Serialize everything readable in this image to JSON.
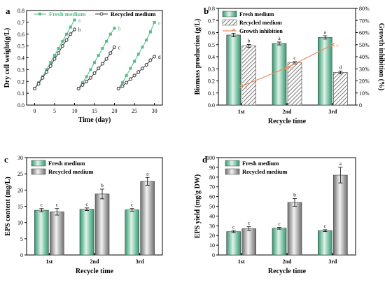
{
  "colors": {
    "fresh": "#4cbf85",
    "recycled": "#333333",
    "inhibition": "#f08a5d",
    "bar_fresh_dark": "#2e9a6e",
    "bar_fresh_light": "#dff3ea",
    "bar_recycled_dark": "#6e6e6e",
    "bar_recycled_light": "#f2f2f2"
  },
  "chart_data": [
    {
      "panel": "a",
      "type": "line",
      "xlabel": "Time (day)",
      "ylabel": "Dry cell weight(g/L)",
      "xlim": [
        -2,
        32
      ],
      "ylim": [
        0.0,
        0.8
      ],
      "xticks": [
        0,
        5,
        10,
        15,
        20,
        25,
        30
      ],
      "yticks": [
        0.0,
        0.1,
        0.2,
        0.3,
        0.4,
        0.5,
        0.6,
        0.7,
        0.8
      ],
      "legend": [
        "Fresh medium",
        "Recycled medium"
      ],
      "series": [
        {
          "name": "Fresh medium",
          "segment": 1,
          "x": [
            0,
            1,
            2,
            3,
            4,
            5,
            6,
            7,
            8,
            9,
            10
          ],
          "y": [
            0.14,
            0.19,
            0.24,
            0.3,
            0.36,
            0.42,
            0.48,
            0.54,
            0.6,
            0.66,
            0.72
          ],
          "end_label": "a"
        },
        {
          "name": "Recycled medium",
          "segment": 1,
          "x": [
            0,
            1,
            2,
            3,
            4,
            5,
            6,
            7,
            8,
            9,
            10
          ],
          "y": [
            0.14,
            0.18,
            0.23,
            0.28,
            0.33,
            0.39,
            0.44,
            0.5,
            0.55,
            0.6,
            0.64
          ],
          "end_label": "b"
        },
        {
          "name": "Fresh medium",
          "segment": 2,
          "x": [
            11,
            12,
            13,
            14,
            15,
            16,
            17,
            18,
            19,
            20
          ],
          "y": [
            0.14,
            0.19,
            0.24,
            0.3,
            0.36,
            0.42,
            0.48,
            0.54,
            0.6,
            0.65
          ],
          "end_label": "b"
        },
        {
          "name": "Recycled medium",
          "segment": 2,
          "x": [
            11,
            12,
            13,
            14,
            15,
            16,
            17,
            18,
            19,
            20
          ],
          "y": [
            0.14,
            0.17,
            0.2,
            0.23,
            0.27,
            0.31,
            0.35,
            0.39,
            0.44,
            0.49
          ],
          "end_label": "c"
        },
        {
          "name": "Fresh medium",
          "segment": 3,
          "x": [
            21,
            22,
            23,
            24,
            25,
            26,
            27,
            28,
            29,
            30
          ],
          "y": [
            0.14,
            0.19,
            0.25,
            0.31,
            0.37,
            0.43,
            0.49,
            0.55,
            0.62,
            0.7
          ],
          "end_label": "a"
        },
        {
          "name": "Recycled medium",
          "segment": 3,
          "x": [
            21,
            22,
            23,
            24,
            25,
            26,
            27,
            28,
            29,
            30
          ],
          "y": [
            0.14,
            0.16,
            0.19,
            0.22,
            0.25,
            0.28,
            0.31,
            0.34,
            0.38,
            0.41
          ],
          "end_label": "d"
        }
      ]
    },
    {
      "panel": "b",
      "type": "bar",
      "xlabel": "Recycle time",
      "ylabel": "Biomass production (g/L)",
      "ylabel_right": "Growth inhibition (%)",
      "categories": [
        "1st",
        "2nd",
        "3rd"
      ],
      "ylim": [
        0.0,
        0.8
      ],
      "yticks": [
        0.0,
        0.1,
        0.2,
        0.3,
        0.4,
        0.5,
        0.6,
        0.7,
        0.8
      ],
      "ylim_right": [
        0,
        80
      ],
      "yticks_right": [
        0,
        10,
        20,
        30,
        40,
        50,
        60,
        70,
        80
      ],
      "yticks_right_labels": [
        "0",
        "10%",
        "20%",
        "30%",
        "40%",
        "50%",
        "60%",
        "70%",
        "80%"
      ],
      "legend": [
        "Fresh medium",
        "Recycled medium",
        "Growth inhibition"
      ],
      "series": [
        {
          "name": "Fresh medium",
          "values": [
            0.58,
            0.51,
            0.56
          ],
          "errors": [
            0.015,
            0.012,
            0.014
          ],
          "letters": [
            "a",
            "a",
            "a"
          ]
        },
        {
          "name": "Recycled medium",
          "values": [
            0.49,
            0.35,
            0.27
          ],
          "errors": [
            0.012,
            0.01,
            0.012
          ],
          "letters": [
            "b",
            "c",
            "d"
          ]
        },
        {
          "name": "Growth inhibition",
          "axis": "right",
          "values": [
            15.5,
            31.0,
            50.0
          ],
          "letters": [
            "a",
            "b",
            "c"
          ]
        }
      ]
    },
    {
      "panel": "c",
      "type": "bar",
      "xlabel": "Recycle time",
      "ylabel": "EPS content (mg/L)",
      "categories": [
        "1st",
        "2nd",
        "3rd"
      ],
      "ylim": [
        0,
        30
      ],
      "yticks": [
        0,
        5,
        10,
        15,
        20,
        25,
        30
      ],
      "legend": [
        "Fresh medium",
        "Recycled medium"
      ],
      "series": [
        {
          "name": "Fresh medium",
          "values": [
            13.8,
            14.1,
            13.9
          ],
          "errors": [
            0.5,
            0.4,
            0.4
          ],
          "letters": [
            "c",
            "c",
            "c"
          ]
        },
        {
          "name": "Recycled medium",
          "values": [
            13.3,
            18.8,
            22.7
          ],
          "errors": [
            1.0,
            1.5,
            1.2
          ],
          "letters": [
            "c",
            "b",
            "a"
          ]
        }
      ]
    },
    {
      "panel": "d",
      "type": "bar",
      "xlabel": "Recycle time",
      "ylabel": "EPS yield (mg/g DW)",
      "categories": [
        "1st",
        "2nd",
        "3rd"
      ],
      "ylim": [
        0,
        100
      ],
      "yticks": [
        0,
        10,
        20,
        30,
        40,
        50,
        60,
        70,
        80,
        90,
        100
      ],
      "legend": [
        "Fresh medium",
        "Recycled medium"
      ],
      "series": [
        {
          "name": "Fresh medium",
          "values": [
            24.0,
            27.5,
            25.0
          ],
          "errors": [
            1.0,
            1.0,
            1.0
          ],
          "letters": [
            "c",
            "c",
            "c"
          ]
        },
        {
          "name": "Recycled medium",
          "values": [
            27.0,
            54.0,
            82.0
          ],
          "errors": [
            2.0,
            4.0,
            8.0
          ],
          "letters": [
            "c",
            "b",
            "a"
          ]
        }
      ]
    }
  ]
}
